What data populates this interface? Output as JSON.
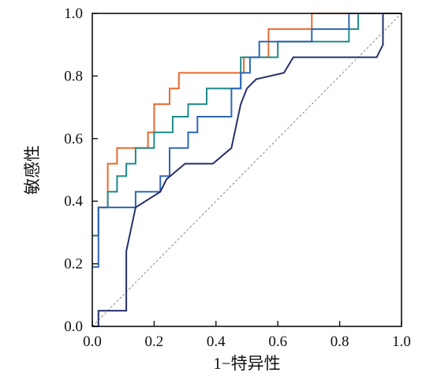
{
  "chart_data": {
    "type": "line",
    "title": "",
    "xlabel": "1−特异性",
    "ylabel": "敏感性",
    "xlim": [
      0.0,
      1.0
    ],
    "ylim": [
      0.0,
      1.0
    ],
    "x_ticks": [
      "0.0",
      "0.2",
      "0.4",
      "0.6",
      "0.8",
      "1.0"
    ],
    "y_ticks": [
      "0.0",
      "0.2",
      "0.4",
      "0.6",
      "0.8",
      "1.0"
    ],
    "grid": false,
    "legend": "none",
    "reference_line": {
      "x": [
        0.0,
        1.0
      ],
      "y": [
        0.0,
        1.0
      ],
      "color": "#8a8a8a",
      "style": "dashed"
    },
    "series": [
      {
        "color": "#e8692f",
        "x": [
          0.0,
          0.02,
          0.02,
          0.05,
          0.05,
          0.08,
          0.08,
          0.18,
          0.18,
          0.2,
          0.2,
          0.25,
          0.25,
          0.28,
          0.28,
          0.49,
          0.49,
          0.57,
          0.57,
          0.71,
          0.71,
          0.94
        ],
        "y": [
          0.29,
          0.29,
          0.38,
          0.38,
          0.52,
          0.52,
          0.57,
          0.57,
          0.62,
          0.62,
          0.71,
          0.71,
          0.76,
          0.76,
          0.81,
          0.81,
          0.86,
          0.86,
          0.95,
          0.95,
          1.0,
          1.0
        ]
      },
      {
        "color": "#1f8a8a",
        "x": [
          0.0,
          0.02,
          0.02,
          0.05,
          0.05,
          0.08,
          0.08,
          0.11,
          0.11,
          0.14,
          0.14,
          0.2,
          0.2,
          0.26,
          0.26,
          0.31,
          0.31,
          0.37,
          0.37,
          0.48,
          0.48,
          0.6,
          0.6,
          0.83,
          0.83,
          0.86,
          0.86,
          0.94
        ],
        "y": [
          0.29,
          0.29,
          0.38,
          0.38,
          0.43,
          0.43,
          0.48,
          0.48,
          0.52,
          0.52,
          0.57,
          0.57,
          0.62,
          0.62,
          0.67,
          0.67,
          0.71,
          0.71,
          0.76,
          0.76,
          0.86,
          0.86,
          0.91,
          0.91,
          0.95,
          0.95,
          1.0,
          1.0
        ]
      },
      {
        "color": "#2f66b5",
        "x": [
          0.0,
          0.02,
          0.02,
          0.14,
          0.14,
          0.22,
          0.22,
          0.25,
          0.25,
          0.31,
          0.31,
          0.34,
          0.34,
          0.45,
          0.45,
          0.48,
          0.48,
          0.51,
          0.51,
          0.54,
          0.54,
          0.71,
          0.71,
          0.83,
          0.83,
          0.94
        ],
        "y": [
          0.19,
          0.19,
          0.38,
          0.38,
          0.43,
          0.43,
          0.48,
          0.48,
          0.57,
          0.57,
          0.62,
          0.62,
          0.67,
          0.67,
          0.76,
          0.76,
          0.81,
          0.81,
          0.86,
          0.86,
          0.91,
          0.91,
          0.95,
          0.95,
          1.0,
          1.0
        ]
      },
      {
        "color": "#27306b",
        "x": [
          0.0,
          0.02,
          0.02,
          0.11,
          0.11,
          0.14,
          0.22,
          0.24,
          0.3,
          0.39,
          0.45,
          0.48,
          0.5,
          0.53,
          0.62,
          0.65,
          0.74,
          0.85,
          0.92,
          0.94,
          0.94,
          1.0
        ],
        "y": [
          0.0,
          0.0,
          0.05,
          0.05,
          0.24,
          0.38,
          0.43,
          0.47,
          0.52,
          0.52,
          0.57,
          0.71,
          0.76,
          0.79,
          0.81,
          0.86,
          0.86,
          0.86,
          0.86,
          0.9,
          1.0,
          1.0
        ]
      }
    ]
  }
}
